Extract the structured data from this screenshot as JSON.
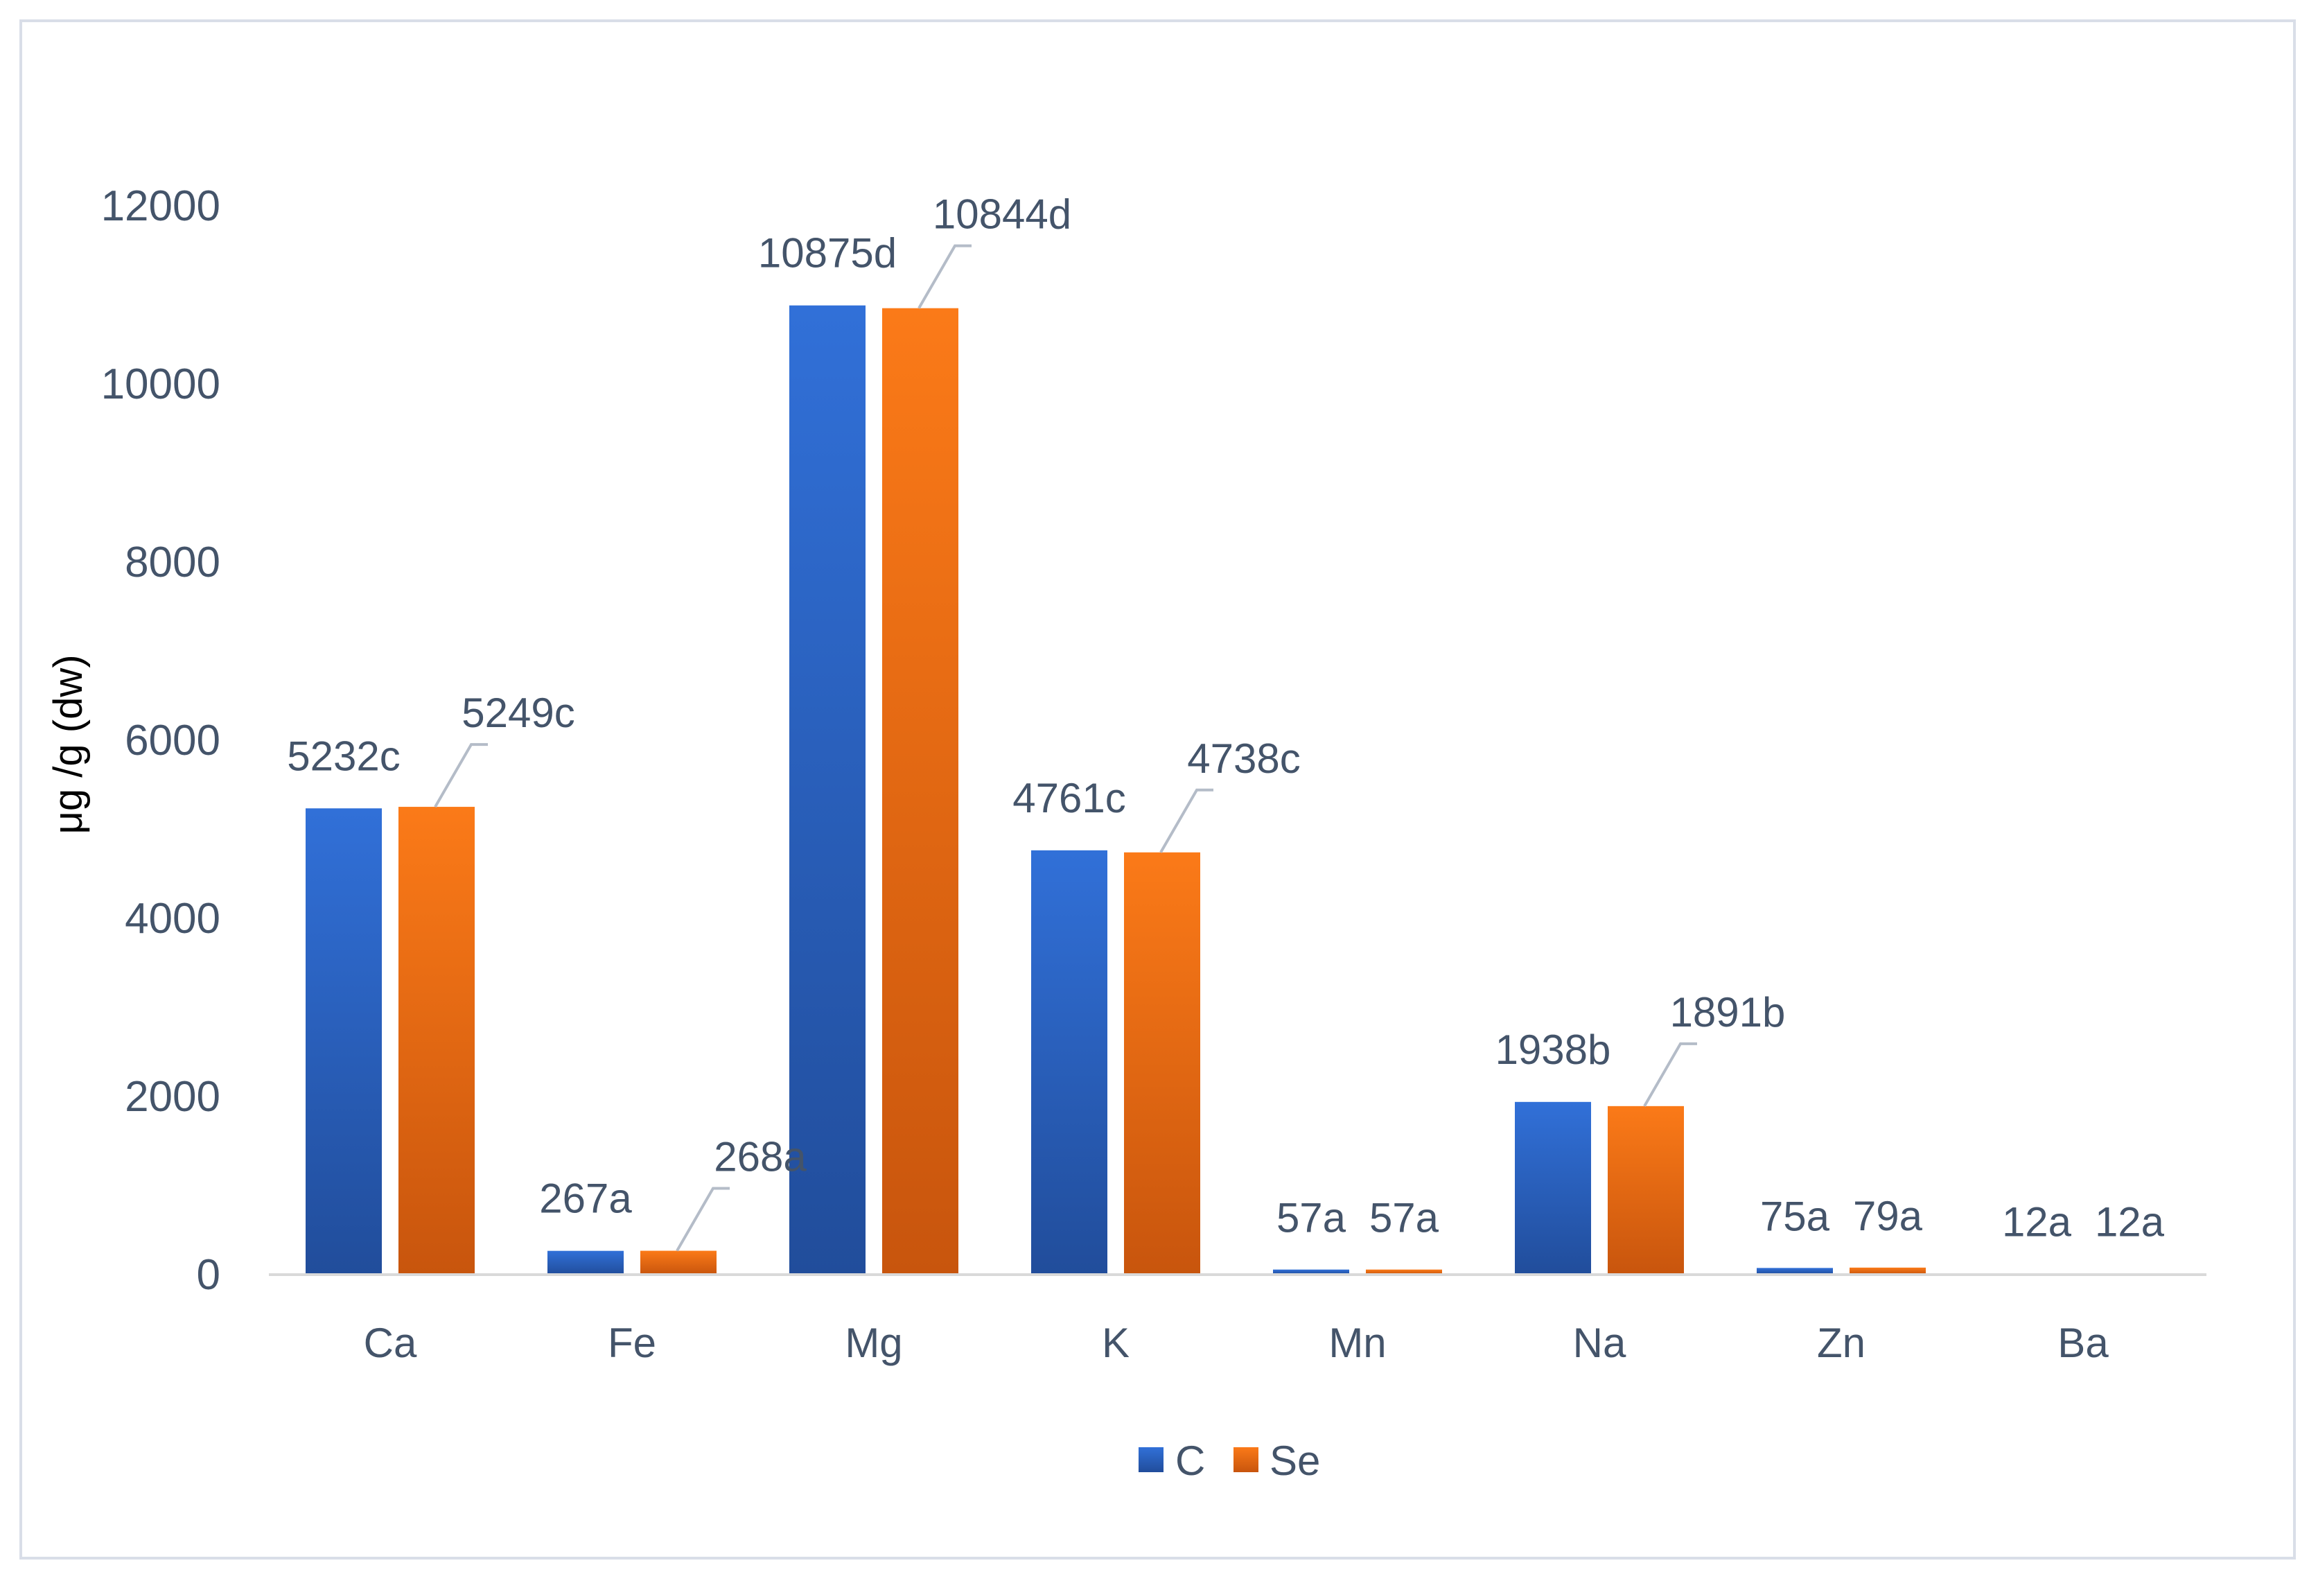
{
  "chart_data": {
    "type": "bar",
    "title": "",
    "xlabel": "",
    "ylabel": "μg /g  (dw)",
    "ylim": [
      0,
      12000
    ],
    "yticks": [
      "0",
      "2000",
      "4000",
      "6000",
      "8000",
      "10000",
      "12000"
    ],
    "grid": false,
    "legend_position": "bottom",
    "categories": [
      "Ca",
      "Fe",
      "Mg",
      "K",
      "Mn",
      "Na",
      "Zn",
      "Ba"
    ],
    "series": [
      {
        "name": "C",
        "color": "#2e6ad4",
        "values": [
          5232,
          267,
          10875,
          4761,
          57,
          1938,
          75,
          12
        ],
        "labels": [
          "5232c",
          "267a",
          "10875d",
          "4761c",
          "57a",
          "1938b",
          "75a",
          "12a"
        ]
      },
      {
        "name": "Se",
        "color": "#f97316",
        "values": [
          5249,
          268,
          10844,
          4738,
          57,
          1891,
          79,
          12
        ],
        "labels": [
          "5249c",
          "268a",
          "10844d",
          "4738c",
          "57a",
          "1891b",
          "79a",
          "12a"
        ]
      }
    ]
  }
}
